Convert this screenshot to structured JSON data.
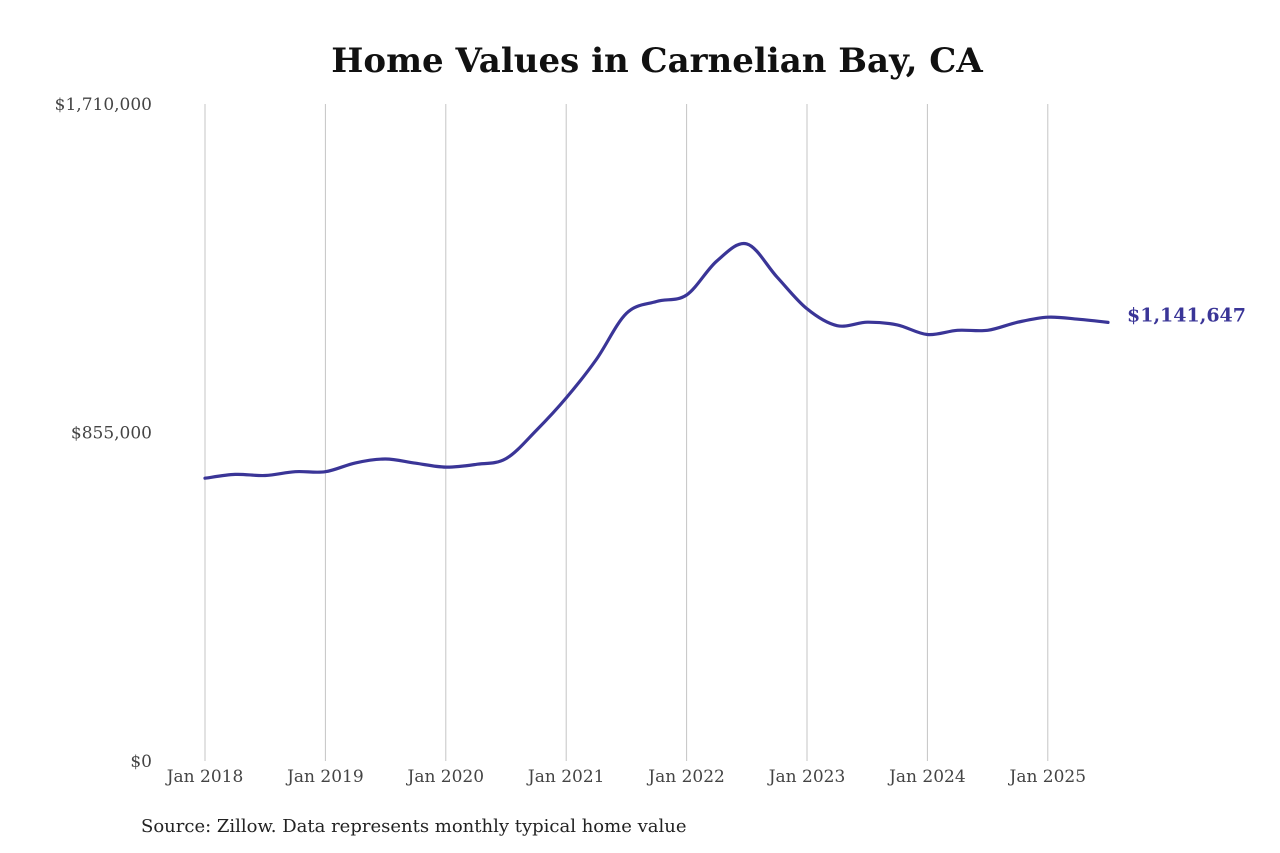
{
  "chart_data": {
    "type": "line",
    "title": "Home Values in Carnelian Bay, CA",
    "xlabel": "",
    "ylabel": "",
    "ylim": [
      0,
      1710000
    ],
    "xlim": [
      "2018-01",
      "2025-07"
    ],
    "yticks": [
      {
        "value": 0,
        "label": "$0"
      },
      {
        "value": 855000,
        "label": "$855,000"
      },
      {
        "value": 1710000,
        "label": "$1,710,000"
      }
    ],
    "xticks": [
      {
        "date": "2018-01",
        "label": "Jan 2018"
      },
      {
        "date": "2019-01",
        "label": "Jan 2019"
      },
      {
        "date": "2020-01",
        "label": "Jan 2020"
      },
      {
        "date": "2021-01",
        "label": "Jan 2021"
      },
      {
        "date": "2022-01",
        "label": "Jan 2022"
      },
      {
        "date": "2023-01",
        "label": "Jan 2023"
      },
      {
        "date": "2024-01",
        "label": "Jan 2024"
      },
      {
        "date": "2025-01",
        "label": "Jan 2025"
      }
    ],
    "grid": "vertical",
    "color": "#3a3597",
    "series": [
      {
        "end_label": "$1,141,647",
        "x": [
          "2018-01",
          "2018-04",
          "2018-07",
          "2018-10",
          "2019-01",
          "2019-04",
          "2019-07",
          "2019-10",
          "2020-01",
          "2020-04",
          "2020-07",
          "2020-10",
          "2021-01",
          "2021-04",
          "2021-07",
          "2021-10",
          "2022-01",
          "2022-04",
          "2022-07",
          "2022-10",
          "2023-01",
          "2023-04",
          "2023-07",
          "2023-10",
          "2024-01",
          "2024-04",
          "2024-07",
          "2024-10",
          "2025-01",
          "2025-04",
          "2025-07"
        ],
        "values": [
          736000,
          746000,
          743000,
          753000,
          753000,
          776000,
          786000,
          775000,
          765000,
          772000,
          787000,
          860000,
          945000,
          1045000,
          1165000,
          1196000,
          1213000,
          1301000,
          1346000,
          1260000,
          1177000,
          1133000,
          1142000,
          1135000,
          1110000,
          1121000,
          1121000,
          1142000,
          1155000,
          1150000,
          1141647
        ]
      }
    ]
  },
  "source_note": "Source: Zillow. Data represents monthly typical home value"
}
